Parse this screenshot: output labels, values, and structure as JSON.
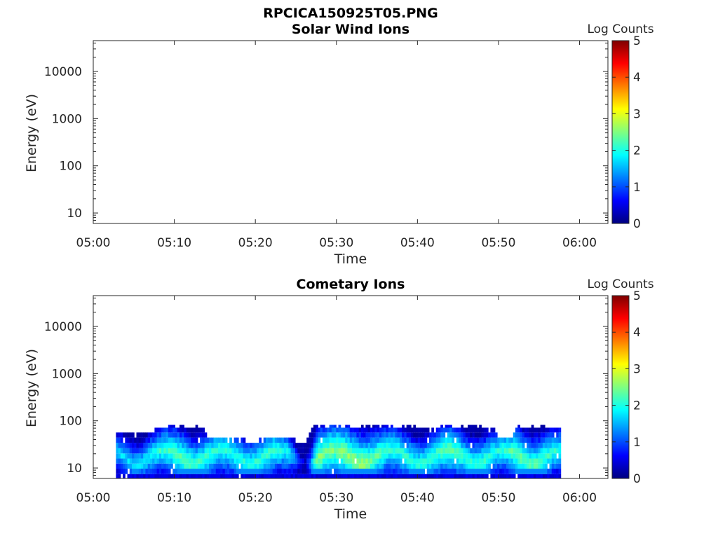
{
  "figure": {
    "title": "RPCICA150925T05.PNG"
  },
  "chart_data": [
    {
      "type": "heatmap",
      "title": "Solar Wind Ions",
      "xlabel": "Time",
      "ylabel": "Energy (eV)",
      "x_ticks": [
        "05:00",
        "05:10",
        "05:20",
        "05:30",
        "05:40",
        "05:50",
        "06:00"
      ],
      "x_range_minutes": [
        0,
        63.5
      ],
      "y_scale": "log",
      "y_ticks": [
        10,
        100,
        1000,
        10000
      ],
      "y_tick_labels": [
        "10",
        "100",
        "1000",
        "10000"
      ],
      "y_range": [
        6,
        45000
      ],
      "colorbar": {
        "label": "Log Counts",
        "range": [
          0,
          5
        ],
        "ticks": [
          "0",
          "1",
          "2",
          "3",
          "4",
          "5"
        ]
      },
      "data_description_none": true,
      "bands": []
    },
    {
      "type": "heatmap",
      "title": "Cometary Ions",
      "xlabel": "Time",
      "ylabel": "Energy (eV)",
      "x_ticks": [
        "05:00",
        "05:10",
        "05:20",
        "05:30",
        "05:40",
        "05:50",
        "06:00"
      ],
      "x_range_minutes": [
        0,
        63.5
      ],
      "y_scale": "log",
      "y_ticks": [
        10,
        100,
        1000,
        10000
      ],
      "y_tick_labels": [
        "10",
        "100",
        "1000",
        "10000"
      ],
      "y_range": [
        6,
        45000
      ],
      "colorbar": {
        "label": "Log Counts",
        "range": [
          0,
          5
        ],
        "ticks": [
          "0",
          "1",
          "2",
          "3",
          "4",
          "5"
        ]
      },
      "data_start_minute": 2.8,
      "data_end_minute": 57.5,
      "energy_bins_eV": [
        6.5,
        8.5,
        11,
        14,
        18,
        23,
        30,
        39,
        50,
        64,
        80
      ],
      "upper_envelope_eV": [
        [
          2.8,
          60
        ],
        [
          5,
          52
        ],
        [
          7,
          60
        ],
        [
          8.5,
          80
        ],
        [
          9.5,
          80
        ],
        [
          11,
          80
        ],
        [
          13,
          80
        ],
        [
          14,
          50
        ],
        [
          17,
          40
        ],
        [
          20,
          35
        ],
        [
          22,
          45
        ],
        [
          24,
          42
        ],
        [
          26,
          30
        ],
        [
          27,
          80
        ],
        [
          30,
          80
        ],
        [
          33,
          80
        ],
        [
          36,
          80
        ],
        [
          39,
          80
        ],
        [
          42,
          60
        ],
        [
          43,
          80
        ],
        [
          45,
          80
        ],
        [
          46,
          80
        ],
        [
          48,
          80
        ],
        [
          50,
          50
        ],
        [
          51.5,
          40
        ],
        [
          52,
          80
        ],
        [
          54,
          80
        ],
        [
          57.5,
          70
        ]
      ],
      "peak_logcounts": [
        [
          3,
          1.9
        ],
        [
          6,
          2.0
        ],
        [
          9,
          2.4
        ],
        [
          11,
          2.6
        ],
        [
          13,
          2.4
        ],
        [
          16,
          2.3
        ],
        [
          19,
          2.3
        ],
        [
          22,
          2.4
        ],
        [
          24,
          2.1
        ],
        [
          26,
          0.6
        ],
        [
          27.5,
          2.8
        ],
        [
          29,
          2.7
        ],
        [
          31,
          2.8
        ],
        [
          33,
          2.9
        ],
        [
          36,
          2.4
        ],
        [
          39,
          2.3
        ],
        [
          42,
          2.4
        ],
        [
          44,
          2.6
        ],
        [
          46,
          2.3
        ],
        [
          48,
          2.4
        ],
        [
          50,
          2.2
        ],
        [
          52,
          2.6
        ],
        [
          55,
          2.5
        ],
        [
          57.5,
          2.2
        ]
      ]
    }
  ]
}
